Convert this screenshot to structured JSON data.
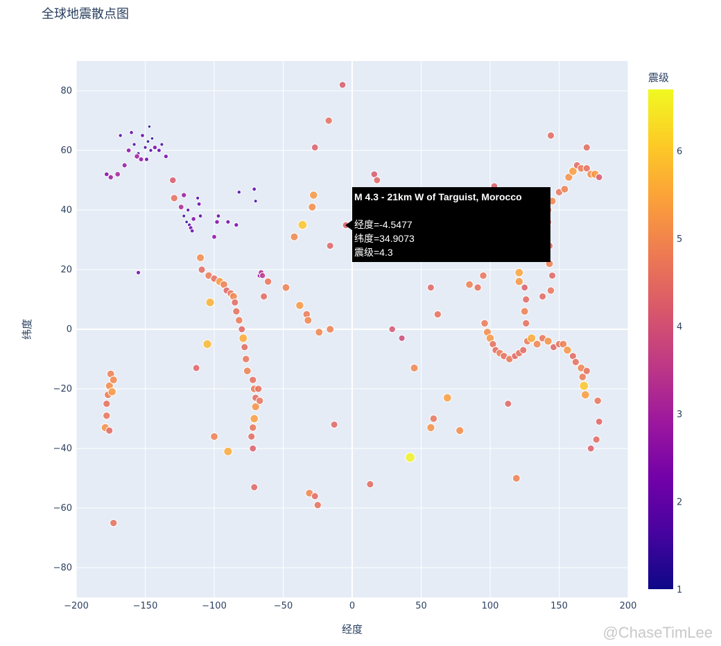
{
  "title": "全球地震散点图",
  "watermark": "@ChaseTimLee",
  "chart_data": {
    "type": "scatter",
    "title": "全球地震散点图",
    "xlabel": "经度",
    "ylabel": "纬度",
    "xlim": [
      -200,
      200
    ],
    "ylim": [
      -90,
      90
    ],
    "x_ticks": [
      -200,
      -150,
      -100,
      -50,
      0,
      50,
      100,
      150,
      200
    ],
    "y_ticks": [
      -80,
      -60,
      -40,
      -20,
      0,
      20,
      40,
      60,
      80
    ],
    "grid": true,
    "colorbar": {
      "title": "震级",
      "range": [
        1,
        6.7
      ],
      "ticks": [
        1,
        2,
        3,
        4,
        5,
        6
      ]
    },
    "points": [
      {
        "x": -150,
        "y": 61,
        "mag": 1.6
      },
      {
        "x": -148,
        "y": 63,
        "mag": 1.4
      },
      {
        "x": -146,
        "y": 60,
        "mag": 1.8
      },
      {
        "x": -152,
        "y": 65,
        "mag": 2.0
      },
      {
        "x": -155,
        "y": 59,
        "mag": 1.5
      },
      {
        "x": -149,
        "y": 57,
        "mag": 2.2
      },
      {
        "x": -145,
        "y": 64,
        "mag": 1.3
      },
      {
        "x": -158,
        "y": 62,
        "mag": 1.7
      },
      {
        "x": -143,
        "y": 61,
        "mag": 2.4
      },
      {
        "x": -160,
        "y": 66,
        "mag": 1.9
      },
      {
        "x": -147,
        "y": 68,
        "mag": 1.2
      },
      {
        "x": -162,
        "y": 60,
        "mag": 2.6
      },
      {
        "x": -165,
        "y": 55,
        "mag": 2.8
      },
      {
        "x": -170,
        "y": 52,
        "mag": 3.1
      },
      {
        "x": -175,
        "y": 51,
        "mag": 2.9
      },
      {
        "x": -178,
        "y": 52,
        "mag": 2.5
      },
      {
        "x": -168,
        "y": 65,
        "mag": 1.8
      },
      {
        "x": -140,
        "y": 60,
        "mag": 2.1
      },
      {
        "x": -138,
        "y": 62,
        "mag": 1.6
      },
      {
        "x": -135,
        "y": 58,
        "mag": 2.3
      },
      {
        "x": -153,
        "y": 57,
        "mag": 2.7
      },
      {
        "x": -156,
        "y": 58,
        "mag": 3.0
      },
      {
        "x": -122,
        "y": 38,
        "mag": 1.5
      },
      {
        "x": -118,
        "y": 35,
        "mag": 1.8
      },
      {
        "x": -117,
        "y": 34,
        "mag": 2.2
      },
      {
        "x": -120,
        "y": 36,
        "mag": 1.4
      },
      {
        "x": -116,
        "y": 33,
        "mag": 2.0
      },
      {
        "x": -119,
        "y": 40,
        "mag": 1.7
      },
      {
        "x": -115,
        "y": 37,
        "mag": 2.5
      },
      {
        "x": -122,
        "y": 45,
        "mag": 2.9
      },
      {
        "x": -112,
        "y": 44,
        "mag": 1.6
      },
      {
        "x": -111,
        "y": 42,
        "mag": 2.1
      },
      {
        "x": -110,
        "y": 38,
        "mag": 1.9
      },
      {
        "x": -124,
        "y": 41,
        "mag": 3.2
      },
      {
        "x": -98,
        "y": 36,
        "mag": 2.4
      },
      {
        "x": -97,
        "y": 38,
        "mag": 2.0
      },
      {
        "x": -100,
        "y": 31,
        "mag": 2.6
      },
      {
        "x": -90,
        "y": 36,
        "mag": 2.2
      },
      {
        "x": -84,
        "y": 35,
        "mag": 2.3
      },
      {
        "x": -82,
        "y": 46,
        "mag": 1.8
      },
      {
        "x": -71,
        "y": 47,
        "mag": 2.0
      },
      {
        "x": -70,
        "y": 43,
        "mag": 1.5
      },
      {
        "x": -67,
        "y": 18,
        "mag": 2.8
      },
      {
        "x": -66,
        "y": 19,
        "mag": 3.3
      },
      {
        "x": -65,
        "y": 18,
        "mag": 3.5
      },
      {
        "x": -155,
        "y": 19,
        "mag": 2.2
      },
      {
        "x": -130,
        "y": 50,
        "mag": 4.2
      },
      {
        "x": -129,
        "y": 44,
        "mag": 4.6
      },
      {
        "x": -110,
        "y": 24,
        "mag": 5.1
      },
      {
        "x": -109,
        "y": 20,
        "mag": 4.5
      },
      {
        "x": -104,
        "y": 18,
        "mag": 4.8
      },
      {
        "x": -100,
        "y": 17,
        "mag": 4.6
      },
      {
        "x": -96,
        "y": 16,
        "mag": 5.3
      },
      {
        "x": -93,
        "y": 15,
        "mag": 4.9
      },
      {
        "x": -91,
        "y": 13,
        "mag": 4.4
      },
      {
        "x": -88,
        "y": 12,
        "mag": 4.7
      },
      {
        "x": -86,
        "y": 11,
        "mag": 5.0
      },
      {
        "x": -85,
        "y": 9,
        "mag": 4.5
      },
      {
        "x": -84,
        "y": 6,
        "mag": 4.6
      },
      {
        "x": -82,
        "y": 3,
        "mag": 4.8
      },
      {
        "x": -80,
        "y": 0,
        "mag": 4.4
      },
      {
        "x": -79,
        "y": -3,
        "mag": 5.6
      },
      {
        "x": -78,
        "y": -6,
        "mag": 4.5
      },
      {
        "x": -77,
        "y": -10,
        "mag": 4.7
      },
      {
        "x": -76,
        "y": -14,
        "mag": 4.9
      },
      {
        "x": -72,
        "y": -17,
        "mag": 4.6
      },
      {
        "x": -71,
        "y": -20,
        "mag": 4.8
      },
      {
        "x": -70,
        "y": -23,
        "mag": 4.5
      },
      {
        "x": -70,
        "y": -26,
        "mag": 5.2
      },
      {
        "x": -71,
        "y": -30,
        "mag": 5.4
      },
      {
        "x": -72,
        "y": -33,
        "mag": 4.7
      },
      {
        "x": -73,
        "y": -36,
        "mag": 4.5
      },
      {
        "x": -72,
        "y": -40,
        "mag": 4.3
      },
      {
        "x": -71,
        "y": -53,
        "mag": 4.4
      },
      {
        "x": -68,
        "y": -20,
        "mag": 4.6
      },
      {
        "x": -67,
        "y": -24,
        "mag": 4.7
      },
      {
        "x": -103,
        "y": 9,
        "mag": 5.7
      },
      {
        "x": -105,
        "y": -5,
        "mag": 5.8
      },
      {
        "x": -113,
        "y": -13,
        "mag": 4.4
      },
      {
        "x": -100,
        "y": -36,
        "mag": 4.9
      },
      {
        "x": -90,
        "y": -41,
        "mag": 5.6
      },
      {
        "x": -64,
        "y": 11,
        "mag": 4.5
      },
      {
        "x": -61,
        "y": 16,
        "mag": 4.7
      },
      {
        "x": -48,
        "y": 14,
        "mag": 4.9
      },
      {
        "x": -38,
        "y": 8,
        "mag": 5.3
      },
      {
        "x": -33,
        "y": 5,
        "mag": 4.8
      },
      {
        "x": -32,
        "y": 3,
        "mag": 5.0
      },
      {
        "x": -24,
        "y": -1,
        "mag": 5.0
      },
      {
        "x": -16,
        "y": 0,
        "mag": 4.9
      },
      {
        "x": -36,
        "y": 35,
        "mag": 6.0
      },
      {
        "x": -28,
        "y": 45,
        "mag": 5.3
      },
      {
        "x": -29,
        "y": 41,
        "mag": 5.1
      },
      {
        "x": -42,
        "y": 31,
        "mag": 5.0
      },
      {
        "x": -16,
        "y": 28,
        "mag": 4.4
      },
      {
        "x": -17,
        "y": 70,
        "mag": 4.6
      },
      {
        "x": -27,
        "y": 61,
        "mag": 4.3
      },
      {
        "x": -7,
        "y": 82,
        "mag": 4.2
      },
      {
        "x": -4.5477,
        "y": 34.9073,
        "mag": 4.3
      },
      {
        "x": -13,
        "y": -32,
        "mag": 4.4
      },
      {
        "x": -31,
        "y": -55,
        "mag": 5.0
      },
      {
        "x": -27,
        "y": -56,
        "mag": 4.5
      },
      {
        "x": -25,
        "y": -59,
        "mag": 4.6
      },
      {
        "x": -175,
        "y": -15,
        "mag": 4.9
      },
      {
        "x": -176,
        "y": -19,
        "mag": 5.1
      },
      {
        "x": -177,
        "y": -22,
        "mag": 4.8
      },
      {
        "x": -178,
        "y": -25,
        "mag": 4.6
      },
      {
        "x": -178,
        "y": -29,
        "mag": 4.7
      },
      {
        "x": -179,
        "y": -33,
        "mag": 5.2
      },
      {
        "x": -176,
        "y": -34,
        "mag": 4.5
      },
      {
        "x": -174,
        "y": -21,
        "mag": 5.3
      },
      {
        "x": -173,
        "y": -17,
        "mag": 5.0
      },
      {
        "x": -173,
        "y": -65,
        "mag": 4.6
      },
      {
        "x": 13,
        "y": -52,
        "mag": 4.5
      },
      {
        "x": 29,
        "y": 0,
        "mag": 4.1
      },
      {
        "x": 36,
        "y": -3,
        "mag": 3.9
      },
      {
        "x": 45,
        "y": -13,
        "mag": 5.0
      },
      {
        "x": 57,
        "y": -33,
        "mag": 5.2
      },
      {
        "x": 59,
        "y": -30,
        "mag": 4.7
      },
      {
        "x": 69,
        "y": -23,
        "mag": 5.4
      },
      {
        "x": 78,
        "y": -34,
        "mag": 5.1
      },
      {
        "x": 42,
        "y": -43,
        "mag": 6.6
      },
      {
        "x": 57,
        "y": 14,
        "mag": 4.4
      },
      {
        "x": 62,
        "y": 5,
        "mag": 4.6
      },
      {
        "x": 16,
        "y": 52,
        "mag": 4.2
      },
      {
        "x": 18,
        "y": 50,
        "mag": 4.4
      },
      {
        "x": 85,
        "y": 15,
        "mag": 4.9
      },
      {
        "x": 91,
        "y": 14,
        "mag": 4.6
      },
      {
        "x": 95,
        "y": 18,
        "mag": 4.7
      },
      {
        "x": 96,
        "y": 2,
        "mag": 4.8
      },
      {
        "x": 98,
        "y": -1,
        "mag": 5.1
      },
      {
        "x": 100,
        "y": -3,
        "mag": 5.3
      },
      {
        "x": 102,
        "y": -5,
        "mag": 4.6
      },
      {
        "x": 104,
        "y": -7,
        "mag": 4.5
      },
      {
        "x": 107,
        "y": -8,
        "mag": 4.8
      },
      {
        "x": 110,
        "y": -9,
        "mag": 4.6
      },
      {
        "x": 114,
        "y": -10,
        "mag": 4.7
      },
      {
        "x": 118,
        "y": -9,
        "mag": 4.4
      },
      {
        "x": 121,
        "y": -8,
        "mag": 4.6
      },
      {
        "x": 124,
        "y": -7,
        "mag": 4.5
      },
      {
        "x": 127,
        "y": -4,
        "mag": 4.8
      },
      {
        "x": 126,
        "y": 2,
        "mag": 4.6
      },
      {
        "x": 125,
        "y": 6,
        "mag": 4.9
      },
      {
        "x": 126,
        "y": 10,
        "mag": 4.5
      },
      {
        "x": 125,
        "y": 14,
        "mag": 4.3
      },
      {
        "x": 121,
        "y": 16,
        "mag": 5.3
      },
      {
        "x": 121,
        "y": 19,
        "mag": 5.5
      },
      {
        "x": 122,
        "y": 24,
        "mag": 4.6
      },
      {
        "x": 143,
        "y": 22,
        "mag": 4.9
      },
      {
        "x": 145,
        "y": 18,
        "mag": 4.4
      },
      {
        "x": 144,
        "y": 13,
        "mag": 4.7
      },
      {
        "x": 138,
        "y": 11,
        "mag": 4.5
      },
      {
        "x": 113,
        "y": -25,
        "mag": 4.4
      },
      {
        "x": 119,
        "y": -50,
        "mag": 4.9
      },
      {
        "x": 130,
        "y": -3,
        "mag": 5.6
      },
      {
        "x": 134,
        "y": -5,
        "mag": 5.0
      },
      {
        "x": 138,
        "y": -3,
        "mag": 4.7
      },
      {
        "x": 142,
        "y": -4,
        "mag": 5.2
      },
      {
        "x": 146,
        "y": -6,
        "mag": 4.4
      },
      {
        "x": 150,
        "y": -5,
        "mag": 4.6
      },
      {
        "x": 153,
        "y": -5,
        "mag": 4.9
      },
      {
        "x": 156,
        "y": -7,
        "mag": 5.3
      },
      {
        "x": 160,
        "y": -9,
        "mag": 4.5
      },
      {
        "x": 162,
        "y": -11,
        "mag": 4.6
      },
      {
        "x": 166,
        "y": -13,
        "mag": 5.0
      },
      {
        "x": 167,
        "y": -16,
        "mag": 4.8
      },
      {
        "x": 168,
        "y": -19,
        "mag": 6.0
      },
      {
        "x": 169,
        "y": -22,
        "mag": 5.4
      },
      {
        "x": 170,
        "y": -14,
        "mag": 4.6
      },
      {
        "x": 178,
        "y": -24,
        "mag": 4.7
      },
      {
        "x": 179,
        "y": -31,
        "mag": 4.4
      },
      {
        "x": 177,
        "y": -37,
        "mag": 4.5
      },
      {
        "x": 173,
        "y": -40,
        "mag": 4.3
      },
      {
        "x": 143,
        "y": 28,
        "mag": 4.5
      },
      {
        "x": 142,
        "y": 36,
        "mag": 4.6
      },
      {
        "x": 142,
        "y": 40,
        "mag": 4.8
      },
      {
        "x": 145,
        "y": 43,
        "mag": 5.0
      },
      {
        "x": 150,
        "y": 46,
        "mag": 4.7
      },
      {
        "x": 154,
        "y": 47,
        "mag": 4.9
      },
      {
        "x": 157,
        "y": 51,
        "mag": 5.2
      },
      {
        "x": 160,
        "y": 53,
        "mag": 5.4
      },
      {
        "x": 163,
        "y": 55,
        "mag": 4.5
      },
      {
        "x": 166,
        "y": 54,
        "mag": 4.8
      },
      {
        "x": 170,
        "y": 54,
        "mag": 4.6
      },
      {
        "x": 173,
        "y": 52,
        "mag": 5.1
      },
      {
        "x": 176,
        "y": 52,
        "mag": 5.3
      },
      {
        "x": 179,
        "y": 51,
        "mag": 4.2
      },
      {
        "x": 170,
        "y": 61,
        "mag": 4.5
      },
      {
        "x": 144,
        "y": 65,
        "mag": 4.5
      },
      {
        "x": 103,
        "y": 48,
        "mag": 4.3
      }
    ]
  },
  "tooltip": {
    "title": "M 4.3 - 21km W of Targuist, Morocco",
    "line1": "经度=-4.5477",
    "line2": "纬度=34.9073",
    "line3": "震级=4.3"
  }
}
